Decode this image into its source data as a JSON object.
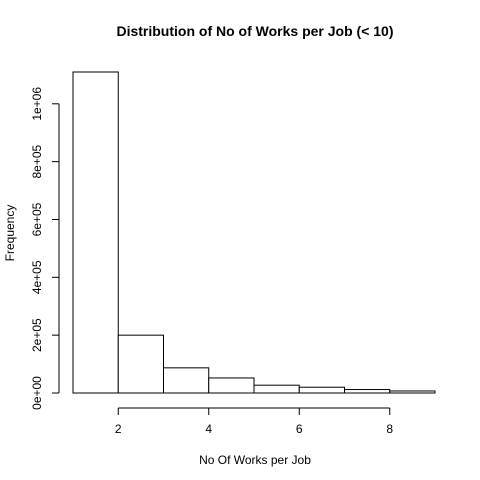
{
  "chart_data": {
    "type": "bar",
    "title": "Distribution of No of Works per Job (< 10)",
    "xlabel": "No Of Works per Job",
    "ylabel": "Frequency",
    "bins": [
      {
        "from": 1,
        "to": 2,
        "value": 1110000
      },
      {
        "from": 2,
        "to": 3,
        "value": 200000
      },
      {
        "from": 3,
        "to": 4,
        "value": 87000
      },
      {
        "from": 4,
        "to": 5,
        "value": 52000
      },
      {
        "from": 5,
        "to": 6,
        "value": 27000
      },
      {
        "from": 6,
        "to": 7,
        "value": 20000
      },
      {
        "from": 7,
        "to": 8,
        "value": 12000
      },
      {
        "from": 8,
        "to": 9,
        "value": 7000
      }
    ],
    "xlim": [
      1,
      9
    ],
    "ylim": [
      0,
      1110000
    ],
    "x_ticks": [
      2,
      4,
      6,
      8
    ],
    "x_tick_labels": [
      "2",
      "4",
      "6",
      "8"
    ],
    "y_ticks": [
      0,
      200000,
      400000,
      600000,
      800000,
      1000000
    ],
    "y_tick_labels": [
      "0e+00",
      "2e+05",
      "4e+05",
      "6e+05",
      "8e+05",
      "1e+06"
    ],
    "grid": false
  }
}
